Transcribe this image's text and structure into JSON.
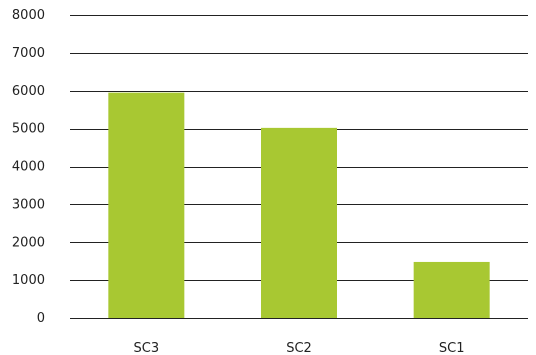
{
  "chart_data": {
    "type": "bar",
    "categories": [
      "SC3",
      "SC2",
      "SC1"
    ],
    "values": [
      5950,
      5020,
      1480
    ],
    "ylim": [
      0,
      8000
    ],
    "yticks": [
      0,
      1000,
      2000,
      3000,
      4000,
      5000,
      6000,
      7000,
      8000
    ],
    "grid": true,
    "legend": "none",
    "bar_color": "#a8c832",
    "grid_color": "#222222"
  }
}
